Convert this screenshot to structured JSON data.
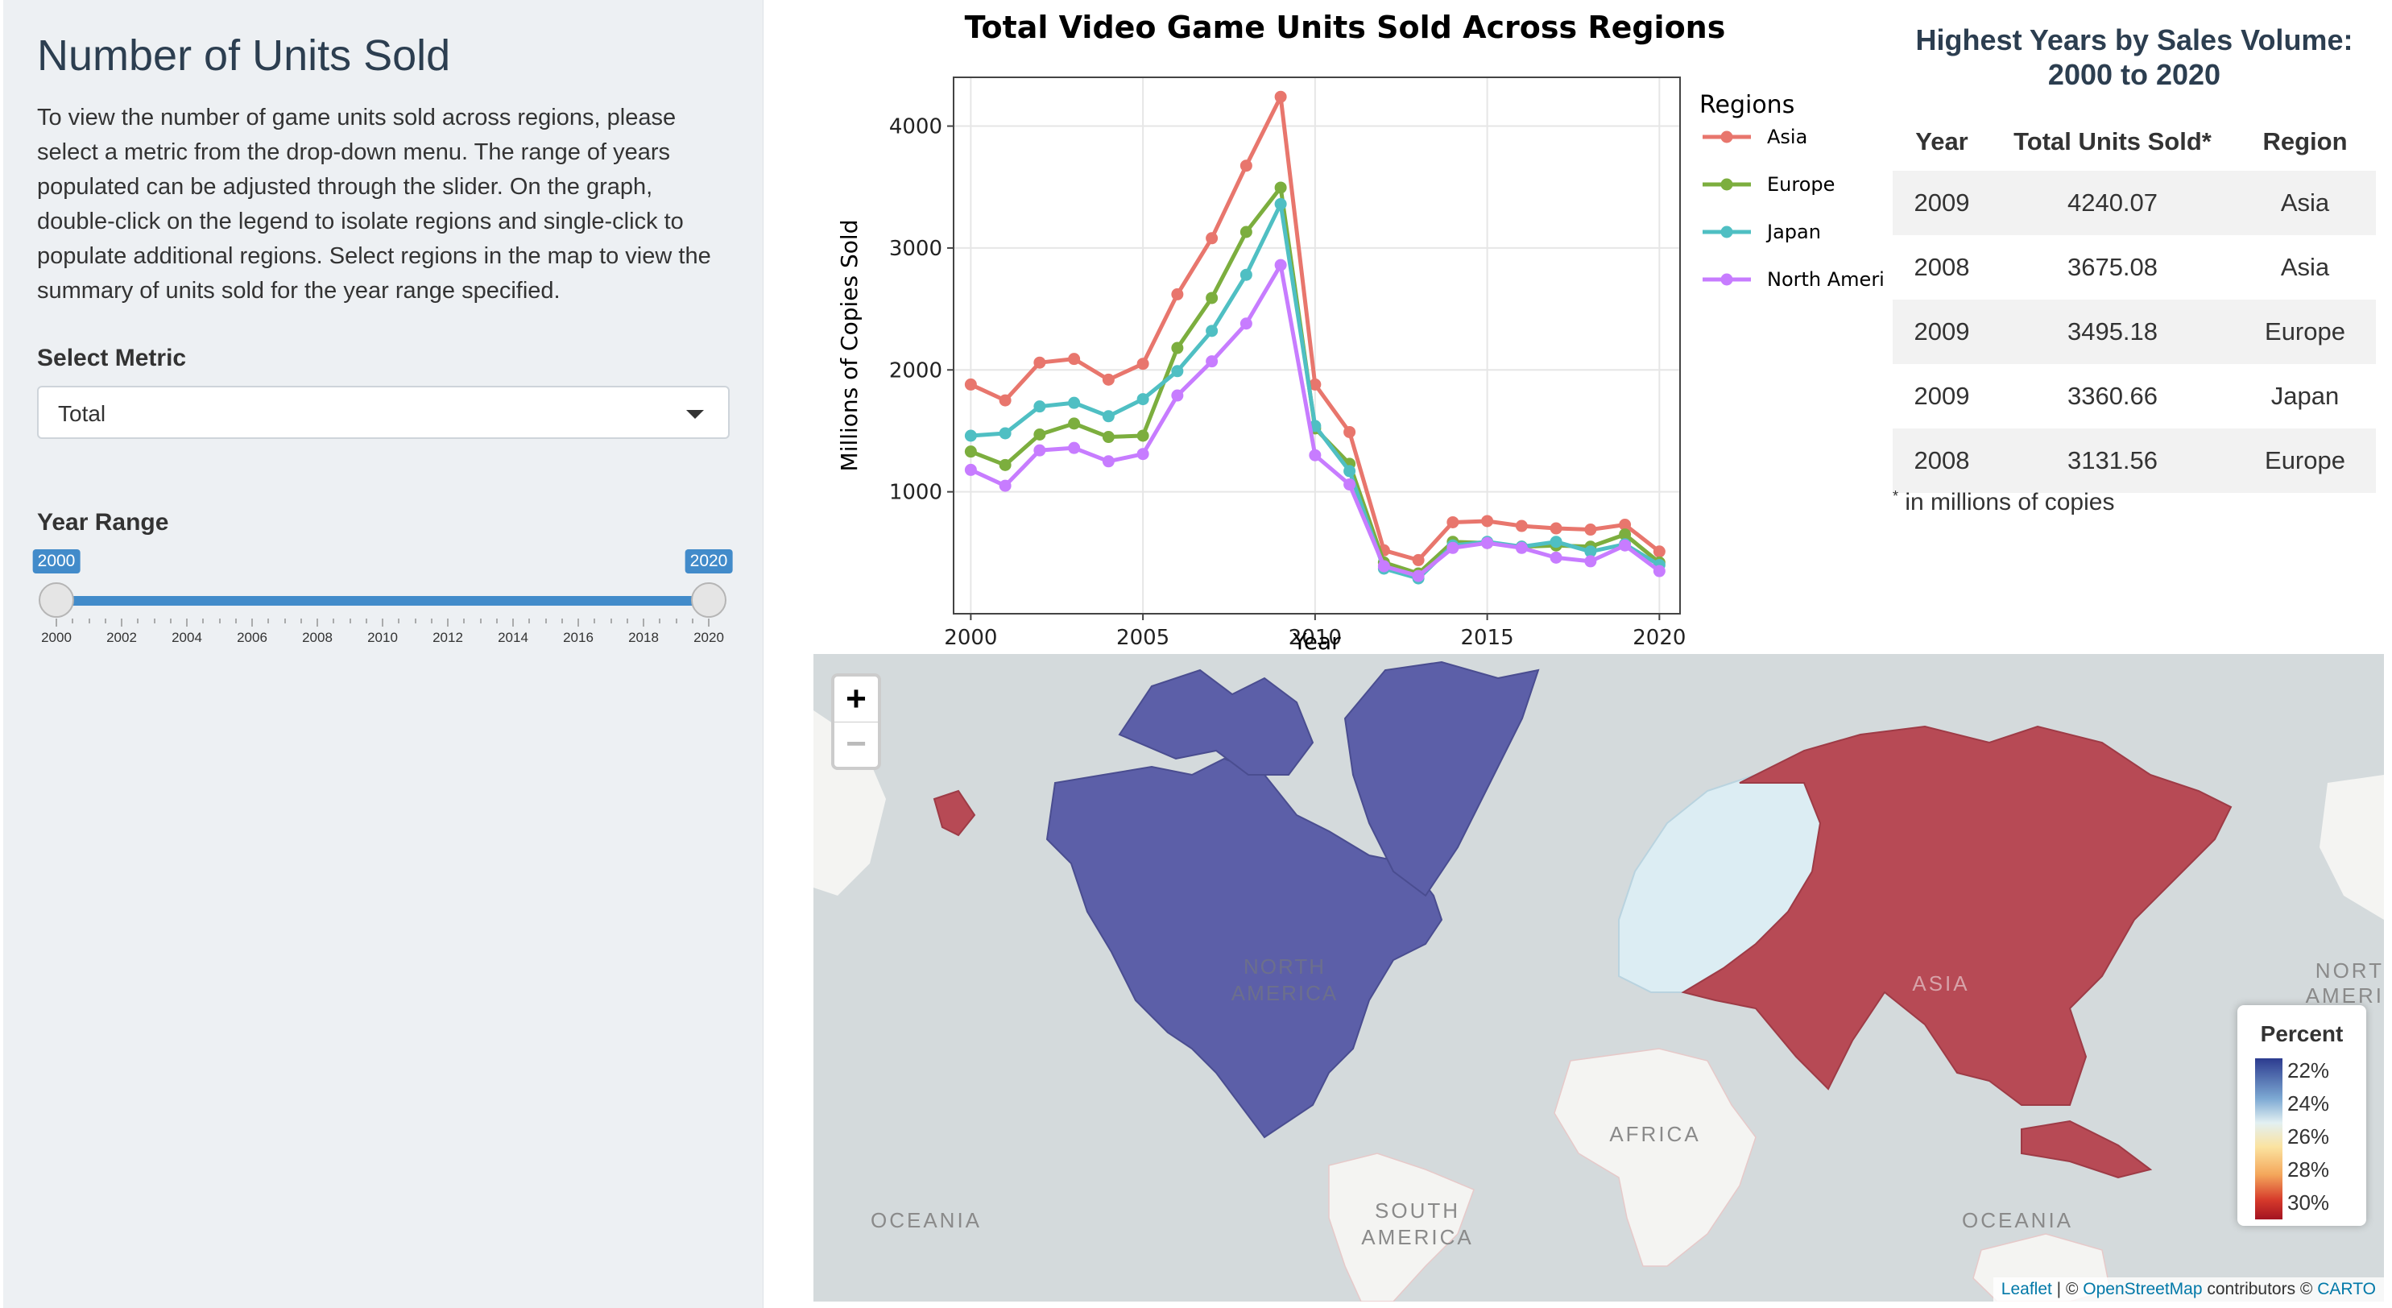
{
  "sidebar": {
    "title": "Number of Units Sold",
    "description": "To view the number of game units sold across regions, please select a metric from the drop-down menu. The range of years populated can be adjusted through the slider. On the graph, double-click on the legend to isolate regions and single-click to populate additional regions. Select regions in the map to view the summary of units sold for the year range specified.",
    "metric_label": "Select Metric",
    "metric_value": "Total",
    "year_range_label": "Year Range",
    "slider": {
      "min": 2000,
      "max": 2020,
      "from": 2000,
      "to": 2020,
      "from_label": "2000",
      "to_label": "2020",
      "ticks": [
        "2000",
        "2002",
        "2004",
        "2006",
        "2008",
        "2010",
        "2012",
        "2014",
        "2016",
        "2018",
        "2020"
      ]
    }
  },
  "chart_data": {
    "type": "line",
    "title": "Total Video Game Units Sold Across Regions",
    "xlabel": "Year",
    "ylabel": "Millions of Copies Sold",
    "xlim": [
      1999.5,
      2020.6
    ],
    "ylim": [
      0,
      4400
    ],
    "xticks": [
      2000,
      2005,
      2010,
      2015,
      2020
    ],
    "xtick_labels": [
      "2000",
      "2005",
      "2010",
      "2015",
      "2020"
    ],
    "yticks": [
      1000,
      2000,
      3000,
      4000
    ],
    "ytick_labels": [
      "1000",
      "2000",
      "3000",
      "4000"
    ],
    "grid": true,
    "legend_title": "Regions",
    "legend_position": "right",
    "x": [
      2000,
      2001,
      2002,
      2003,
      2004,
      2005,
      2006,
      2007,
      2008,
      2009,
      2010,
      2011,
      2012,
      2013,
      2014,
      2015,
      2016,
      2017,
      2018,
      2019,
      2020
    ],
    "series": [
      {
        "name": "Asia",
        "color": "#e8766d",
        "values": [
          1880,
          1750,
          2060,
          2090,
          1920,
          2050,
          2620,
          3080,
          3675.08,
          4240.07,
          1880,
          1490,
          520,
          440,
          750,
          760,
          720,
          700,
          690,
          730,
          510
        ]
      },
      {
        "name": "Europe",
        "color": "#7cae3e",
        "values": [
          1330,
          1220,
          1470,
          1560,
          1450,
          1460,
          2180,
          2590,
          3131.56,
          3495.18,
          1520,
          1230,
          420,
          330,
          590,
          580,
          550,
          560,
          550,
          650,
          420
        ]
      },
      {
        "name": "Japan",
        "color": "#4fbfc3",
        "values": [
          1460,
          1480,
          1700,
          1730,
          1620,
          1760,
          1990,
          2320,
          2780,
          3360.66,
          1540,
          1170,
          370,
          290,
          560,
          590,
          550,
          590,
          510,
          570,
          400
        ]
      },
      {
        "name": "North America",
        "color": "#c77cff",
        "values": [
          1180,
          1050,
          1340,
          1360,
          1250,
          1310,
          1790,
          2070,
          2380,
          2860,
          1300,
          1060,
          390,
          310,
          540,
          580,
          540,
          460,
          430,
          560,
          350
        ]
      }
    ]
  },
  "table": {
    "title": "Highest Years by Sales Volume: 2000 to 2020",
    "headers": [
      "Year",
      "Total Units Sold*",
      "Region"
    ],
    "rows": [
      [
        "2009",
        "4240.07",
        "Asia"
      ],
      [
        "2008",
        "3675.08",
        "Asia"
      ],
      [
        "2009",
        "3495.18",
        "Europe"
      ],
      [
        "2009",
        "3360.66",
        "Japan"
      ],
      [
        "2008",
        "3131.56",
        "Europe"
      ]
    ],
    "footnote_mark": "*",
    "footnote": " in millions of copies"
  },
  "map": {
    "zoom_in_label": "+",
    "zoom_out_label": "−",
    "labels": [
      "NORTH",
      "AMERICA",
      "ASIA",
      "AFRICA",
      "SOUTH",
      "AMERICA",
      "OCEANIA",
      "OCEANIA",
      "NORT",
      "AMERI"
    ],
    "region_colors": {
      "north_america": "#5c5fa8",
      "europe": "#dcedf3",
      "asia": "#b74a55"
    },
    "legend": {
      "title": "Percent",
      "labels": [
        "22%",
        "24%",
        "26%",
        "28%",
        "30%"
      ]
    },
    "attribution": {
      "leaflet": "Leaflet",
      "sep1": " | © ",
      "osm": "OpenStreetMap",
      "mid": " contributors © ",
      "carto": "CARTO"
    }
  }
}
